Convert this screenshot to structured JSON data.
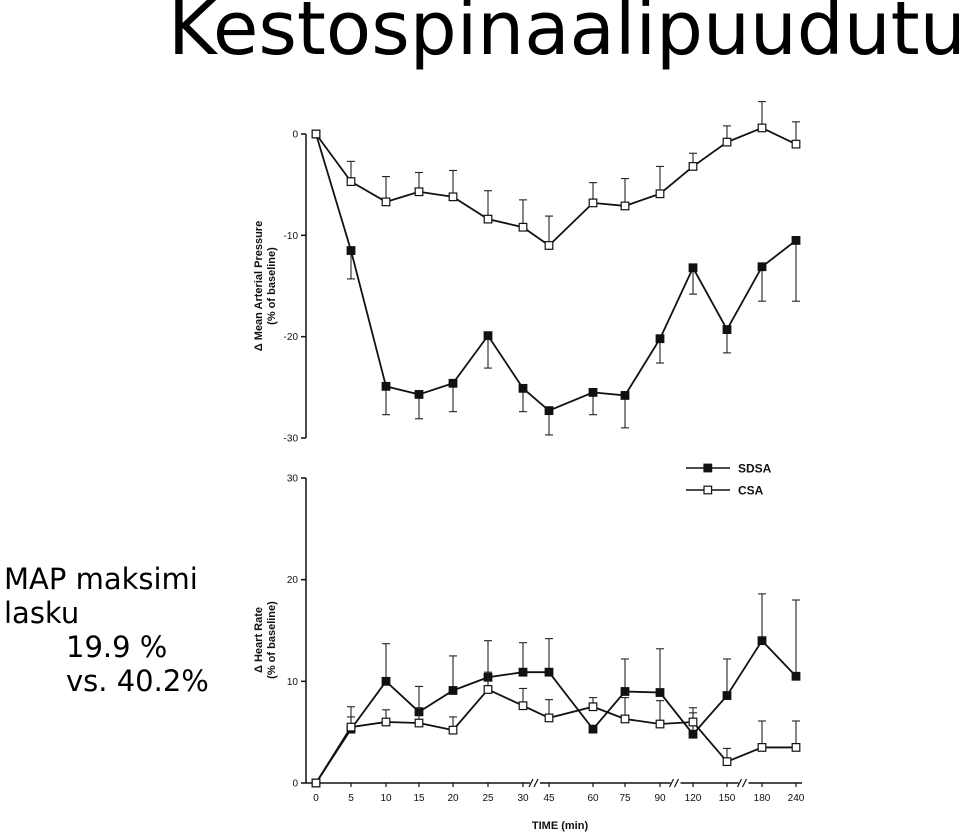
{
  "slide": {
    "title": "Kestospinaalipuudutus",
    "note": [
      "MAP maksimi",
      "lasku",
      "19.9 %",
      "vs. 40.2%"
    ]
  },
  "chart_data": [
    {
      "type": "line",
      "ylabel_lines": [
        "Δ Mean Arterial Pressure",
        "(% of baseline)"
      ],
      "xlabel": "",
      "categories": [
        "0",
        "5",
        "10",
        "15",
        "20",
        "25",
        "30",
        "45",
        "60",
        "75",
        "90",
        "120",
        "150",
        "180",
        "240"
      ],
      "ylim": [
        -30,
        0
      ],
      "yticks": [
        0,
        -10,
        -20,
        -30
      ],
      "grid": false,
      "series": [
        {
          "name": "SDSA",
          "marker": "filled-square",
          "values": [
            0,
            -11.5,
            -24.9,
            -25.7,
            -24.6,
            -19.9,
            -25.1,
            -27.3,
            -25.5,
            -25.8,
            -20.2,
            -13.2,
            -19.3,
            -13.1,
            -10.5
          ],
          "errors": [
            0,
            2.8,
            2.8,
            2.4,
            2.8,
            3.2,
            2.3,
            2.4,
            2.2,
            3.2,
            2.4,
            2.6,
            2.3,
            3.4,
            6.0
          ]
        },
        {
          "name": "CSA",
          "marker": "open-square",
          "values": [
            0,
            -4.7,
            -6.7,
            -5.7,
            -6.2,
            -8.4,
            -9.2,
            -11.0,
            -6.8,
            -7.1,
            -5.9,
            -3.2,
            -0.8,
            0.6,
            -1.0
          ],
          "errors": [
            0,
            2.0,
            2.5,
            1.9,
            2.6,
            2.8,
            2.7,
            2.9,
            2.0,
            2.7,
            2.7,
            1.3,
            1.6,
            2.6,
            2.2
          ]
        }
      ]
    },
    {
      "type": "line",
      "ylabel_lines": [
        "Δ Heart Rate",
        "(% of baseline)"
      ],
      "xlabel": "TIME (min)",
      "categories": [
        "0",
        "5",
        "10",
        "15",
        "20",
        "25",
        "30",
        "45",
        "60",
        "75",
        "90",
        "120",
        "150",
        "180",
        "240"
      ],
      "axis_breaks_after": [
        "30",
        "90",
        "150"
      ],
      "ylim": [
        0,
        30
      ],
      "yticks": [
        0,
        10,
        20,
        30
      ],
      "grid": false,
      "legend": {
        "position": "top-right",
        "entries": [
          "SDSA",
          "CSA"
        ]
      },
      "series": [
        {
          "name": "SDSA",
          "marker": "filled-square",
          "values": [
            0,
            5.3,
            10.0,
            7.0,
            9.1,
            10.4,
            10.9,
            10.9,
            5.3,
            9.0,
            8.9,
            4.8,
            8.6,
            14.0,
            10.5
          ],
          "errors": [
            0,
            2.2,
            3.7,
            2.5,
            3.4,
            3.6,
            2.9,
            3.3,
            0,
            3.2,
            4.3,
            2.6,
            3.6,
            4.6,
            7.5
          ]
        },
        {
          "name": "CSA",
          "marker": "open-square",
          "values": [
            0,
            5.5,
            6.0,
            5.9,
            5.2,
            9.2,
            7.6,
            6.4,
            7.5,
            6.3,
            5.8,
            6.0,
            2.1,
            3.5,
            3.5
          ],
          "errors": [
            0,
            1.0,
            1.2,
            1.5,
            1.3,
            1.7,
            1.7,
            1.8,
            0.9,
            2.1,
            2.3,
            0.9,
            1.3,
            2.6,
            2.6
          ]
        }
      ]
    }
  ]
}
